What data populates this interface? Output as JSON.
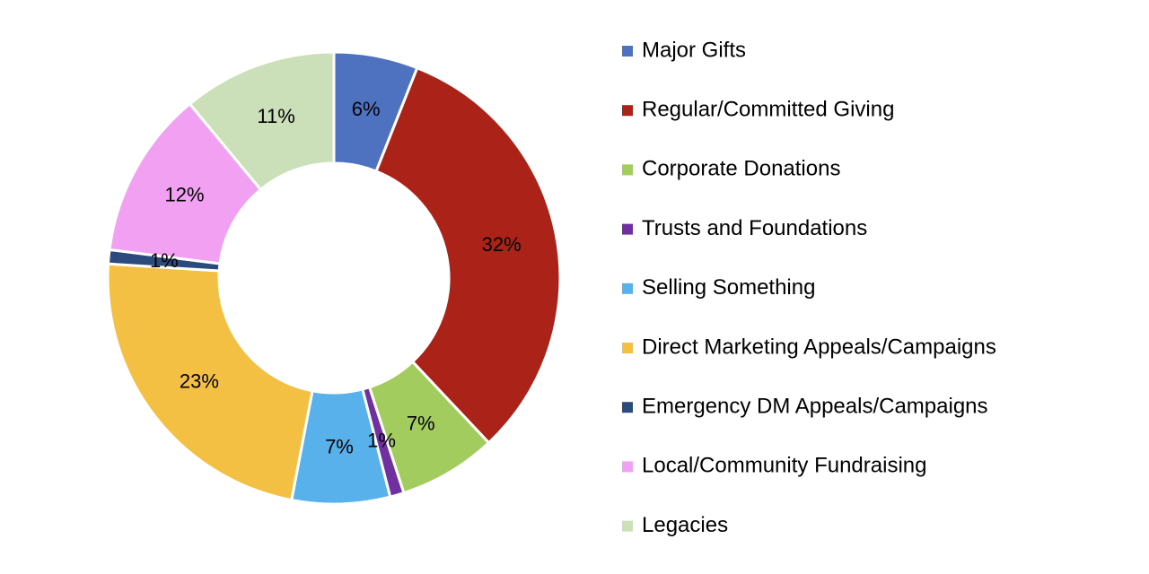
{
  "chart_data": {
    "type": "donut",
    "categories": [
      "Major Gifts",
      "Regular/Committed Giving",
      "Corporate Donations",
      "Trusts and Foundations",
      "Selling Something",
      "Direct Marketing Appeals/Campaigns",
      "Emergency DM Appeals/Campaigns",
      "Local/Community Fundraising",
      "Legacies"
    ],
    "values": [
      6,
      32,
      7,
      1,
      7,
      23,
      1,
      12,
      11
    ],
    "value_labels": [
      "6%",
      "32%",
      "7%",
      "1%",
      "7%",
      "23%",
      "1%",
      "12%",
      "11%"
    ],
    "colors": [
      "#4f72c0",
      "#ab2219",
      "#a3cc5f",
      "#7030a0",
      "#58b1ea",
      "#f4c044",
      "#2c4a7b",
      "#f1a0f2",
      "#cbe0b9"
    ],
    "legend": "right"
  }
}
